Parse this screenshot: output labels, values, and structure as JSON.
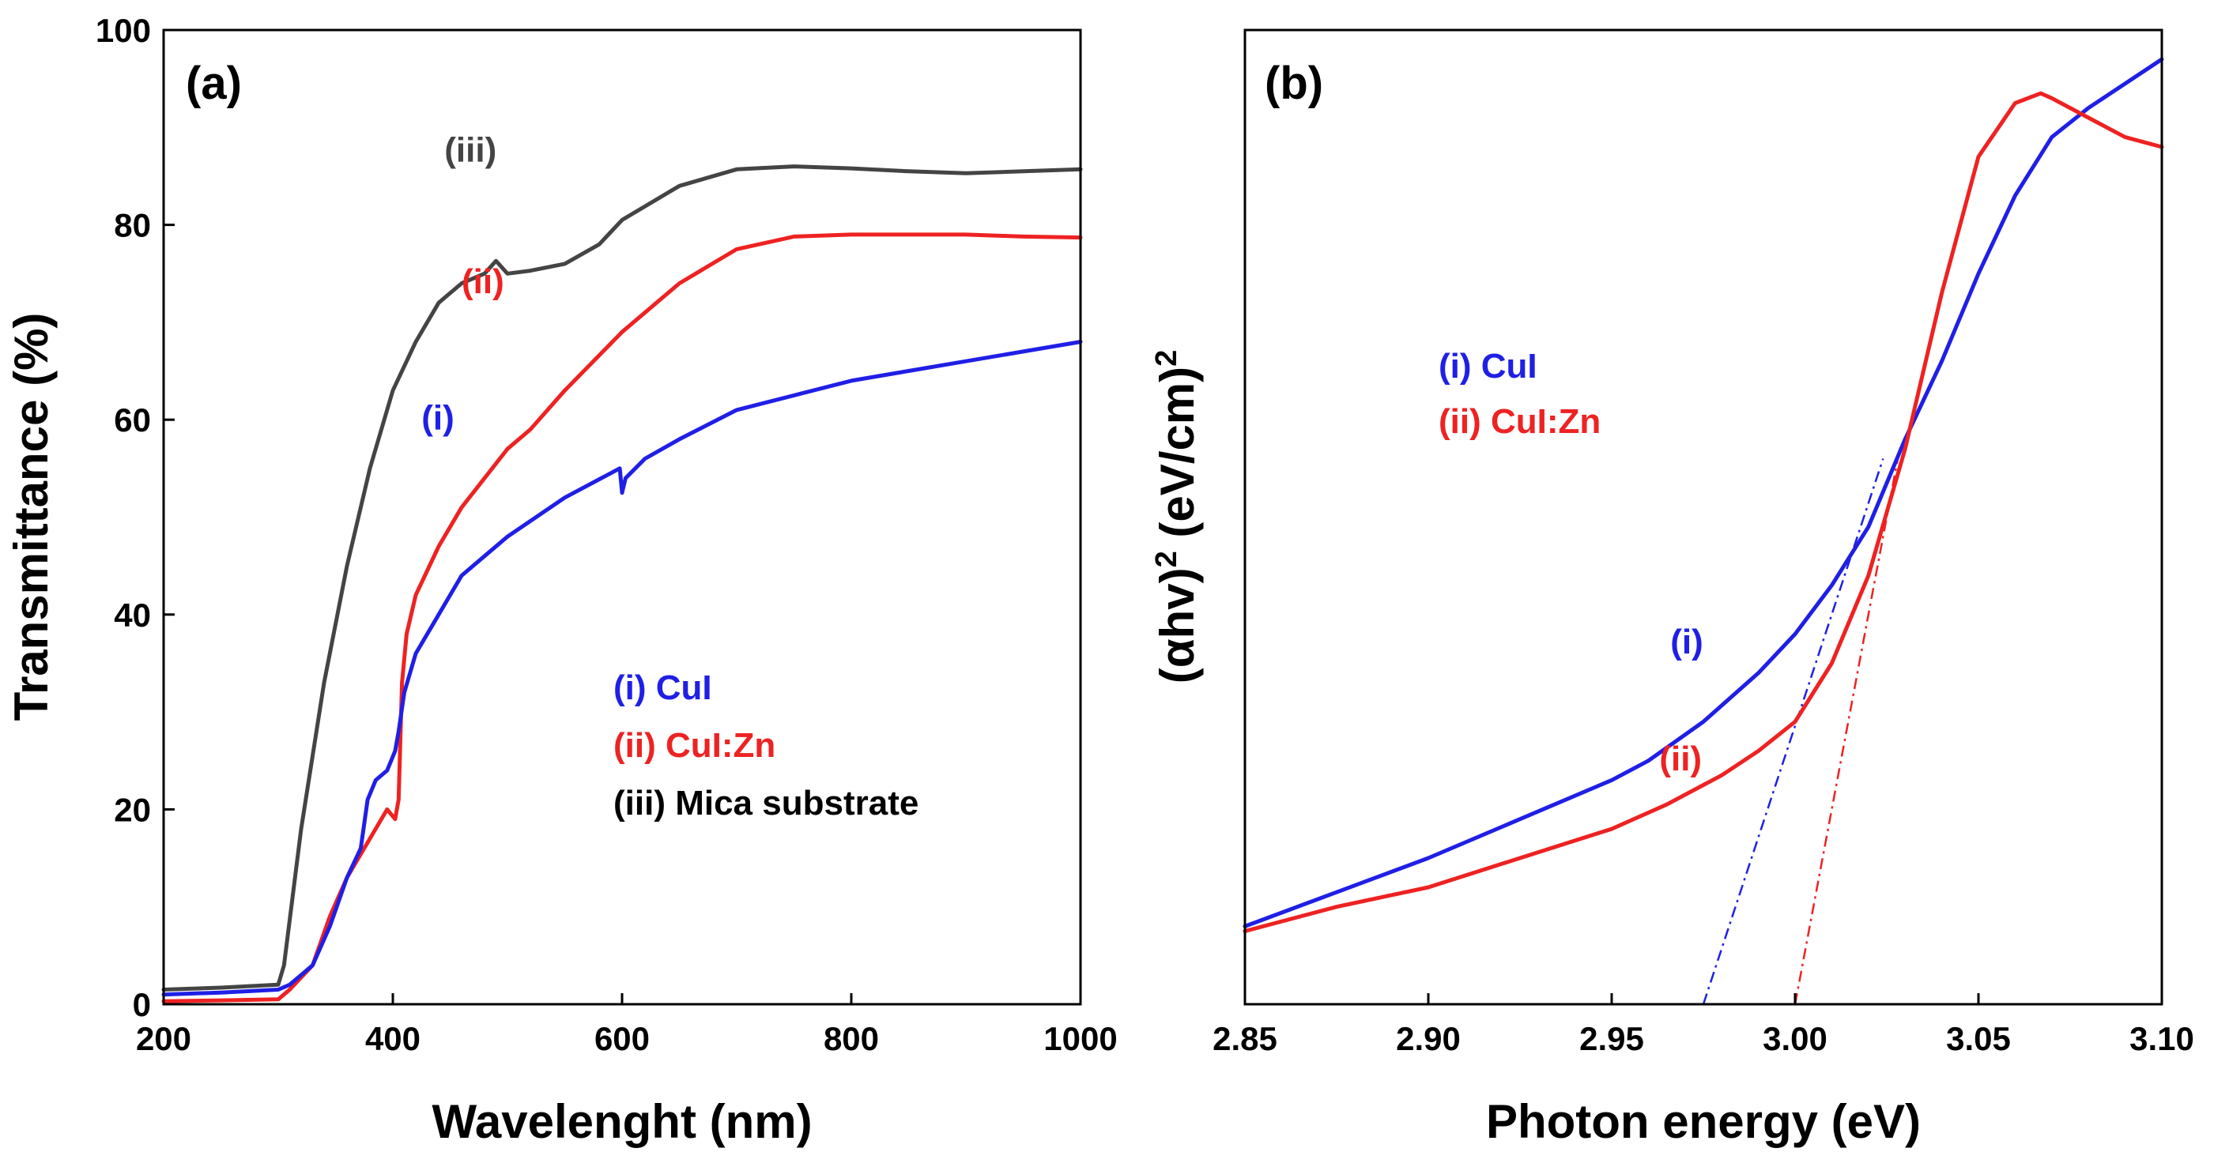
{
  "colors": {
    "cui": "#1f1fe6",
    "cuizn": "#ee2222",
    "mica": "#444444",
    "axis": "#000000"
  },
  "chart_data": [
    {
      "type": "line",
      "panel": "(a)",
      "title": "",
      "xlabel": "Wavelenght (nm)",
      "ylabel": "Transmittance (%)",
      "xlim": [
        200,
        1000
      ],
      "ylim": [
        0,
        100
      ],
      "xticks": [
        200,
        400,
        600,
        800,
        1000
      ],
      "yticks": [
        0,
        20,
        40,
        60,
        80,
        100
      ],
      "series": [
        {
          "name": "(iii) Mica substrate",
          "label": "(iii)",
          "color_key": "mica",
          "x": [
            200,
            250,
            300,
            305,
            320,
            340,
            360,
            380,
            400,
            420,
            440,
            460,
            480,
            490,
            500,
            520,
            550,
            580,
            600,
            650,
            700,
            750,
            800,
            850,
            900,
            950,
            1000
          ],
          "y": [
            1.5,
            1.7,
            2.0,
            4,
            18,
            33,
            45,
            55,
            63,
            68,
            72,
            74,
            75,
            76.3,
            75,
            75.3,
            76,
            78,
            80.5,
            84,
            85.7,
            86,
            85.8,
            85.5,
            85.3,
            85.5,
            85.7
          ],
          "label_at": [
            445,
            86.5
          ]
        },
        {
          "name": "(ii) CuI:Zn",
          "label": "(ii)",
          "color_key": "cuizn",
          "x": [
            200,
            250,
            300,
            310,
            330,
            345,
            360,
            380,
            395,
            402,
            405,
            408,
            412,
            420,
            440,
            460,
            480,
            500,
            520,
            550,
            600,
            650,
            700,
            750,
            800,
            850,
            900,
            950,
            1000
          ],
          "y": [
            0.3,
            0.4,
            0.5,
            1.5,
            4,
            9,
            13,
            17,
            20,
            19,
            21,
            33,
            38,
            42,
            47,
            51,
            54,
            57,
            59,
            63,
            69,
            74,
            77.5,
            78.8,
            79,
            79,
            79,
            78.8,
            78.7
          ],
          "label_at": [
            460,
            73
          ]
        },
        {
          "name": "(i) CuI",
          "label": "(i)",
          "color_key": "cui",
          "x": [
            200,
            250,
            300,
            310,
            330,
            345,
            360,
            372,
            378,
            385,
            395,
            402,
            405,
            410,
            420,
            440,
            460,
            480,
            500,
            550,
            598,
            600,
            603,
            620,
            650,
            700,
            750,
            800,
            850,
            900,
            950,
            1000
          ],
          "y": [
            1.0,
            1.2,
            1.5,
            2.0,
            4,
            8,
            13,
            16,
            21,
            23,
            24,
            26,
            28,
            32,
            36,
            40,
            44,
            46,
            48,
            52,
            55,
            52.5,
            54,
            56,
            58,
            61,
            62.5,
            64,
            65,
            66,
            67,
            68
          ],
          "label_at": [
            425,
            59
          ]
        }
      ],
      "legend": [
        "(i) CuI",
        "(ii) CuI:Zn",
        "(iii) Mica substrate"
      ],
      "legend_placement": "bottom-right"
    },
    {
      "type": "line",
      "panel": "(b)",
      "title": "",
      "xlabel": "Photon energy (eV)",
      "ylabel_main": "(αhv)",
      "ylabel_sup1": "2",
      "ylabel_units": " (eV/cm)",
      "ylabel_sup2": "2",
      "xlim": [
        2.85,
        3.1
      ],
      "ylim": [
        0,
        100
      ],
      "xticks": [
        "2.85",
        "2.90",
        "2.95",
        "3.00",
        "3.05",
        "3.10"
      ],
      "yticks_shown": false,
      "series": [
        {
          "name": "(i) CuI",
          "label": "(i)",
          "color_key": "cui",
          "x": [
            2.85,
            2.875,
            2.9,
            2.925,
            2.95,
            2.96,
            2.975,
            2.99,
            3.0,
            3.01,
            3.02,
            3.03,
            3.04,
            3.05,
            3.06,
            3.07,
            3.08,
            3.1
          ],
          "y": [
            8,
            11.5,
            15,
            19,
            23,
            25,
            29,
            34,
            38,
            43,
            49,
            58,
            66,
            75,
            83,
            89,
            92,
            97
          ],
          "label_at": [
            2.966,
            36
          ],
          "fit_x": [
            2.975,
            3.024
          ],
          "fit_y": [
            0,
            56
          ]
        },
        {
          "name": "(ii) CuI:Zn",
          "label": "(ii)",
          "color_key": "cuizn",
          "x": [
            2.85,
            2.875,
            2.9,
            2.925,
            2.95,
            2.965,
            2.98,
            2.99,
            3.0,
            3.01,
            3.02,
            3.03,
            3.04,
            3.05,
            3.06,
            3.067,
            3.07,
            3.08,
            3.09,
            3.1
          ],
          "y": [
            7.5,
            10,
            12,
            15,
            18,
            20.5,
            23.5,
            26,
            29,
            35,
            44,
            57,
            73,
            87,
            92.5,
            93.5,
            93,
            91,
            89,
            88
          ],
          "label_at": [
            2.963,
            24
          ],
          "fit_x": [
            3.0,
            3.028
          ],
          "fit_y": [
            0,
            56
          ]
        }
      ],
      "legend": [
        "(i) CuI",
        "(ii) CuI:Zn"
      ],
      "legend_placement": "center-left"
    }
  ]
}
